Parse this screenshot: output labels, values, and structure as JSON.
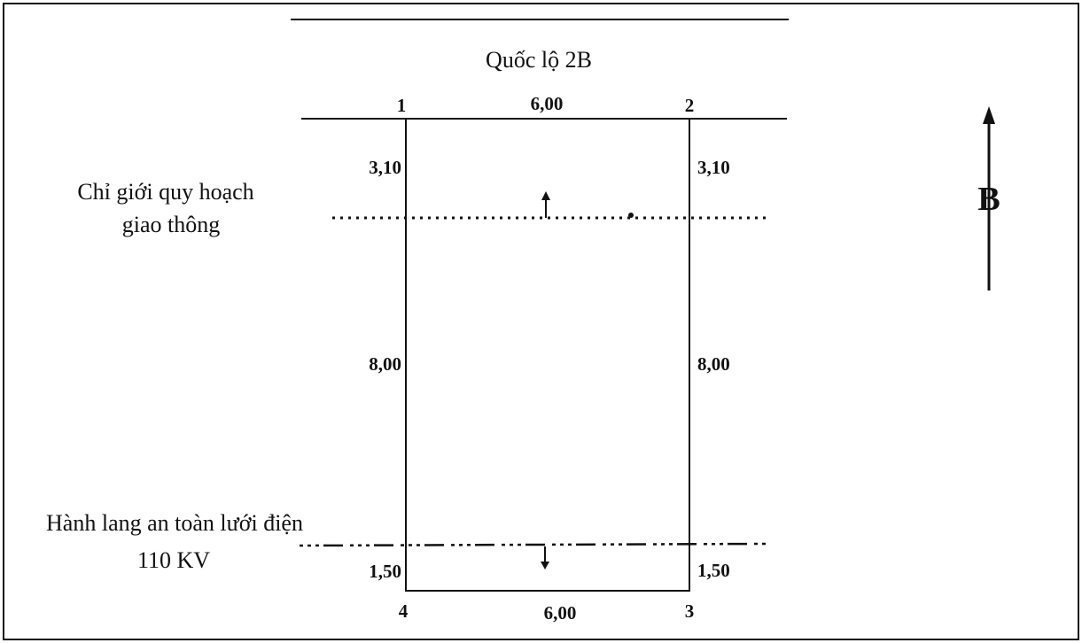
{
  "road": {
    "name": "Quốc lộ 2B"
  },
  "lot": {
    "corners": [
      "1",
      "2",
      "3",
      "4"
    ],
    "top_width": "6,00",
    "bottom_width": "6,00",
    "left_segments": [
      "3,10",
      "8,00",
      "1,50"
    ],
    "right_segments": [
      "3,10",
      "8,00",
      "1,50"
    ]
  },
  "traffic_boundary": {
    "line1": "Chỉ giới quy hoạch",
    "line2": "giao thông"
  },
  "power_corridor": {
    "line1": "Hành lang an toàn lưới điện",
    "line2": "110 KV"
  },
  "north_arrow": {
    "label": "B"
  },
  "colors": {
    "ink": "#111111",
    "background": "#ffffff"
  }
}
